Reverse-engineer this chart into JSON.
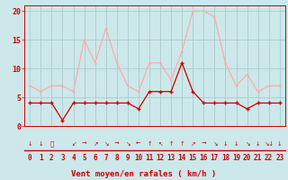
{
  "x": [
    0,
    1,
    2,
    3,
    4,
    5,
    6,
    7,
    8,
    9,
    10,
    11,
    12,
    13,
    14,
    15,
    16,
    17,
    18,
    19,
    20,
    21,
    22,
    23
  ],
  "wind_avg": [
    4,
    4,
    4,
    1,
    4,
    4,
    4,
    4,
    4,
    4,
    3,
    6,
    6,
    6,
    11,
    6,
    4,
    4,
    4,
    4,
    3,
    4,
    4,
    4
  ],
  "wind_gust": [
    7,
    6,
    7,
    7,
    6,
    15,
    11,
    17,
    11,
    7,
    6,
    11,
    11,
    8,
    13,
    20,
    20,
    19,
    11,
    7,
    9,
    6,
    7,
    7
  ],
  "bg_color": "#cce8ea",
  "grid_color": "#aacccc",
  "line_avg_color": "#cc0000",
  "line_gust_color": "#ffaaaa",
  "tick_color": "#cc0000",
  "xlabel": "Vent moyen/en rafales ( km/h )",
  "ylim": [
    0,
    21
  ],
  "yticks": [
    0,
    5,
    10,
    15,
    20
  ],
  "arrows": [
    "↓",
    "↓",
    "⤴",
    "",
    "↙",
    "→",
    "↗",
    "↘",
    "→",
    "↘",
    "←",
    "↑",
    "↖",
    "↑",
    "↑",
    "↗",
    "→",
    "↘",
    "↓",
    "↓",
    "↘",
    "↓",
    "↘↓",
    "↓"
  ]
}
